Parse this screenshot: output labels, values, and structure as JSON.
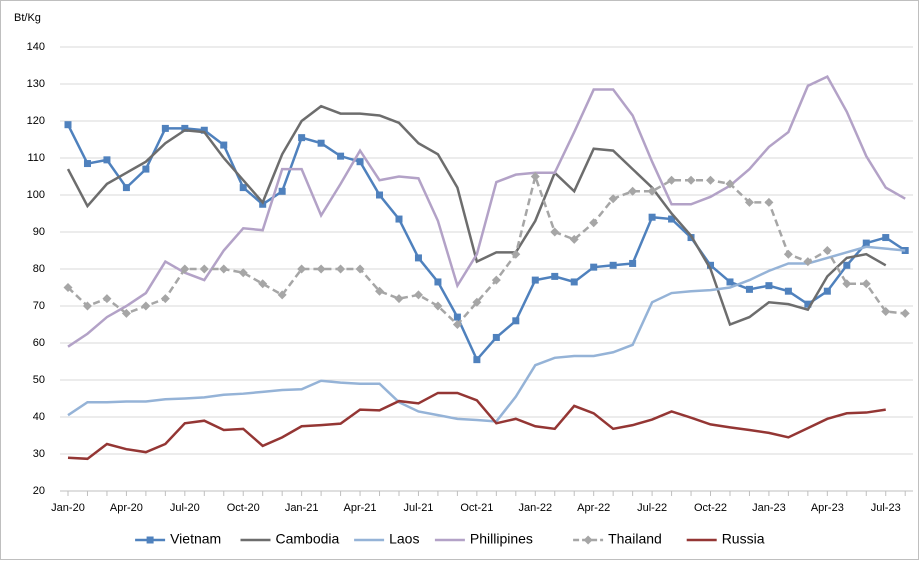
{
  "chart_data": {
    "type": "line",
    "y_label": "Bt/Kg",
    "categories": [
      "Jan-20",
      null,
      null,
      "Apr-20",
      null,
      null,
      "Jul-20",
      null,
      null,
      "Oct-20",
      null,
      null,
      "Jan-21",
      null,
      null,
      "Apr-21",
      null,
      null,
      "Jul-21",
      null,
      null,
      "Oct-21",
      null,
      null,
      "Jan-22",
      null,
      null,
      "Apr-22",
      null,
      null,
      "Jul-22",
      null,
      null,
      "Oct-22",
      null,
      null,
      "Jan-23",
      null,
      null,
      "Apr-23",
      null,
      null,
      "Jul-23",
      null
    ],
    "ylim": [
      20,
      140
    ],
    "yticks": [
      20,
      30,
      40,
      50,
      60,
      70,
      80,
      90,
      100,
      110,
      120,
      130,
      140
    ],
    "grid": true,
    "legend": "bottom",
    "series": [
      {
        "name": "Vietnam",
        "color": "#4f81bd",
        "marker": "square",
        "dash": false,
        "values": [
          119,
          108.5,
          109.5,
          102,
          107,
          118,
          118,
          117.5,
          113.5,
          102,
          97.5,
          101,
          115.5,
          114,
          110.5,
          109,
          100,
          93.5,
          83,
          76.5,
          67,
          55.5,
          61.5,
          66,
          77,
          78,
          76.5,
          80.5,
          81,
          81.5,
          94,
          93.5,
          88.5,
          81,
          76.5,
          74.5,
          75.5,
          74,
          70.5,
          74,
          81,
          87,
          88.5,
          85
        ]
      },
      {
        "name": "Cambodia",
        "color": "#6d6d6d",
        "marker": "none",
        "dash": false,
        "values": [
          107,
          97,
          103,
          106,
          109,
          114,
          117.5,
          117,
          110,
          104,
          98,
          111,
          120,
          124,
          122,
          122,
          121.5,
          119.5,
          114,
          111,
          102,
          82,
          84.5,
          84.5,
          93,
          106,
          101,
          112.5,
          112,
          107,
          102,
          95,
          89,
          80,
          65,
          67,
          71,
          70.5,
          69,
          78,
          83,
          84,
          81,
          null
        ]
      },
      {
        "name": "Laos",
        "color": "#95b3d7",
        "marker": "none",
        "dash": false,
        "values": [
          40.5,
          44,
          44,
          44.2,
          44.2,
          44.8,
          45,
          45.3,
          46,
          46.3,
          46.8,
          47.3,
          47.5,
          49.8,
          49.3,
          49,
          49,
          44,
          41.5,
          40.5,
          39.5,
          39.2,
          38.8,
          45.5,
          54,
          56,
          56.5,
          56.5,
          57.5,
          59.5,
          71,
          73.5,
          74,
          74.3,
          75,
          77,
          79.5,
          81.5,
          81.5,
          83,
          84.5,
          86,
          85.5,
          85
        ]
      },
      {
        "name": "Phillipines",
        "color": "#b3a2c7",
        "marker": "none",
        "dash": false,
        "values": [
          59,
          62.5,
          67,
          70,
          73.5,
          82,
          79,
          77,
          85,
          91,
          90.5,
          107,
          107,
          94.5,
          103,
          112,
          104,
          105,
          104.5,
          93,
          75.5,
          84,
          103.5,
          105.5,
          106,
          106,
          117,
          128.5,
          128.5,
          121.5,
          109,
          97.5,
          97.5,
          99.5,
          102.5,
          107,
          113,
          117,
          129.5,
          132,
          122.5,
          110.5,
          102,
          99
        ]
      },
      {
        "name": "Thailand",
        "color": "#a6a6a6",
        "marker": "diamond",
        "dash": true,
        "values": [
          75,
          70,
          72,
          68,
          70,
          72,
          80,
          80,
          80,
          79,
          76,
          73,
          80,
          80,
          80,
          80,
          74,
          72,
          73,
          70,
          65,
          71,
          77,
          84,
          105,
          90,
          88,
          92.5,
          99,
          101,
          101,
          104,
          104,
          104,
          103,
          98,
          98,
          84,
          82,
          85,
          76,
          76,
          68.5,
          68
        ]
      },
      {
        "name": "Russia",
        "color": "#943634",
        "marker": "none",
        "dash": false,
        "values": [
          29,
          28.7,
          32.7,
          31.3,
          30.5,
          32.7,
          38.3,
          39,
          36.5,
          36.8,
          32.2,
          34.5,
          37.5,
          37.8,
          38.2,
          42,
          41.8,
          44.3,
          43.7,
          46.5,
          46.5,
          44.5,
          38.3,
          39.5,
          37.5,
          36.8,
          43,
          41,
          36.8,
          37.8,
          39.3,
          41.5,
          39.8,
          38,
          37.2,
          36.5,
          35.7,
          34.5,
          37,
          39.5,
          41,
          41.2,
          42,
          null
        ]
      }
    ]
  }
}
